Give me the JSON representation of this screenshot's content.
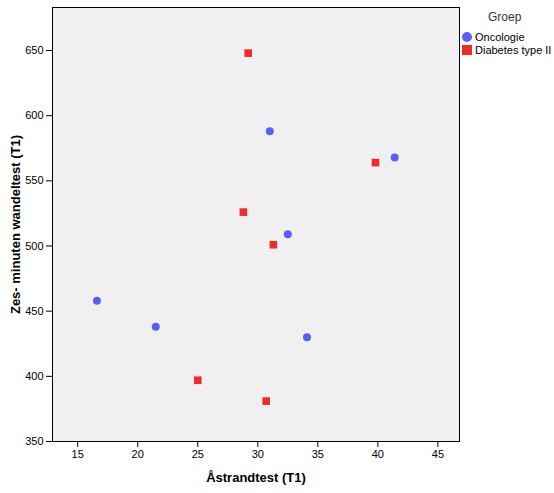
{
  "chart_data": {
    "type": "scatter",
    "x_label": "Åstrandtest (T1)",
    "y_label": "Zes- minuten wandeltest (T1)",
    "legend_title": "Groep",
    "legend": "right",
    "xlim": [
      12.9,
      46.8
    ],
    "xticks": [
      15,
      20,
      25,
      30,
      35,
      40,
      45
    ],
    "ylim": [
      350,
      683
    ],
    "yticks": [
      350,
      400,
      450,
      500,
      550,
      600,
      650
    ],
    "grid": false,
    "series": [
      {
        "name": "Oncologie",
        "color": "#5d5dfa",
        "marker": "circle",
        "x": [
          31.0,
          41.4,
          32.5,
          16.6,
          21.5,
          34.1
        ],
        "values": [
          588,
          568,
          509,
          458,
          438,
          430
        ]
      },
      {
        "name": "Diabetes type II",
        "color": "#ee2a2a",
        "marker": "square",
        "x": [
          29.2,
          39.8,
          28.8,
          31.3,
          25.0,
          30.7
        ],
        "values": [
          648,
          564,
          526,
          501,
          397,
          381
        ]
      }
    ]
  }
}
